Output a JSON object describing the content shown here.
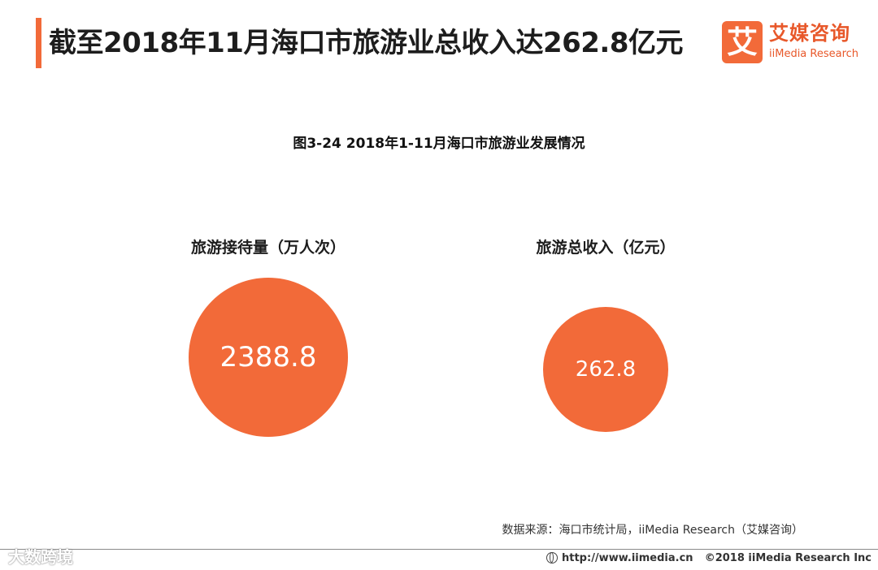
{
  "header": {
    "title": "截至2018年11月海口市旅游业总收入达262.8亿元"
  },
  "logo": {
    "mark": "艾",
    "name_cn": "艾媒咨询",
    "name_en": "iiMedia Research",
    "color": "#f26a39"
  },
  "chart_data": {
    "type": "bubble",
    "title": "图3-24 2018年1-11月海口市旅游业发展情况",
    "bubble_color": "#f26a39",
    "label_color": "#ffffff",
    "series": [
      {
        "name": "旅游接待量（万人次）",
        "value": 2388.8,
        "label": "2388.8"
      },
      {
        "name": "旅游总收入（亿元）",
        "value": 262.8,
        "label": "262.8"
      }
    ]
  },
  "source": "数据来源：海口市统计局，iiMedia Research（艾媒咨询）",
  "watermark": "大数跨境",
  "footer": {
    "url": "http://www.iimedia.cn",
    "copyright": "©2018  iiMedia Research  Inc"
  }
}
